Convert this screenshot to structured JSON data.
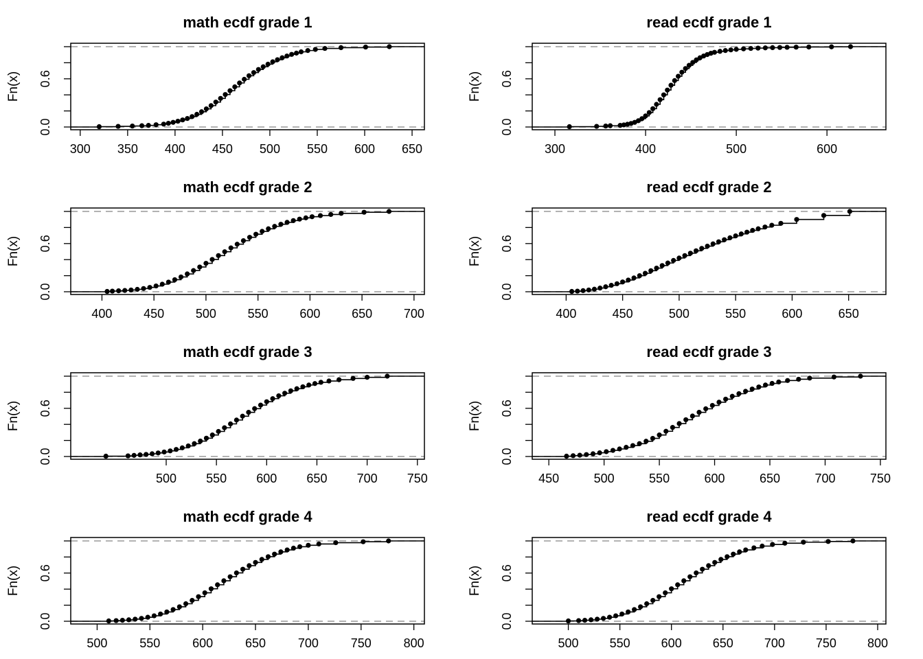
{
  "chart_data": [
    {
      "type": "line",
      "title": "math ecdf grade 1",
      "xlabel": "",
      "ylabel": "Fn(x)",
      "xticks": [
        300,
        350,
        400,
        450,
        500,
        550,
        600,
        650
      ],
      "yticks": [
        "0.0",
        "0.6"
      ],
      "xlim": [
        290,
        663
      ],
      "ylim": [
        0,
        1
      ],
      "x": [
        320,
        340,
        355,
        365,
        372,
        380,
        388,
        393,
        398,
        403,
        408,
        413,
        418,
        423,
        428,
        433,
        438,
        443,
        448,
        453,
        458,
        463,
        468,
        473,
        478,
        483,
        488,
        493,
        498,
        503,
        508,
        513,
        518,
        523,
        528,
        533,
        540,
        548,
        558,
        575,
        601,
        626
      ],
      "y": [
        0.004,
        0.008,
        0.012,
        0.016,
        0.02,
        0.028,
        0.036,
        0.046,
        0.058,
        0.072,
        0.088,
        0.106,
        0.13,
        0.158,
        0.19,
        0.226,
        0.266,
        0.31,
        0.356,
        0.404,
        0.452,
        0.5,
        0.548,
        0.594,
        0.638,
        0.678,
        0.716,
        0.75,
        0.782,
        0.812,
        0.838,
        0.862,
        0.884,
        0.904,
        0.92,
        0.936,
        0.952,
        0.966,
        0.978,
        0.988,
        0.995,
        1.0
      ]
    },
    {
      "type": "line",
      "title": "read ecdf grade 1",
      "xlabel": "",
      "ylabel": "Fn(x)",
      "xticks": [
        300,
        400,
        500,
        600
      ],
      "yticks": [
        "0.0",
        "0.6"
      ],
      "xlim": [
        275,
        665
      ],
      "ylim": [
        0,
        1
      ],
      "x": [
        316,
        346,
        356,
        361,
        372,
        376,
        380,
        384,
        388,
        392,
        396,
        400,
        404,
        408,
        412,
        416,
        420,
        424,
        428,
        432,
        436,
        440,
        444,
        448,
        452,
        456,
        460,
        464,
        468,
        472,
        476,
        482,
        488,
        494,
        500,
        508,
        516,
        524,
        532,
        540,
        548,
        556,
        566,
        580,
        605,
        626
      ],
      "y": [
        0.004,
        0.008,
        0.012,
        0.016,
        0.02,
        0.026,
        0.034,
        0.044,
        0.058,
        0.078,
        0.104,
        0.138,
        0.18,
        0.228,
        0.282,
        0.34,
        0.4,
        0.46,
        0.52,
        0.578,
        0.632,
        0.682,
        0.728,
        0.768,
        0.804,
        0.836,
        0.862,
        0.884,
        0.902,
        0.918,
        0.93,
        0.942,
        0.952,
        0.96,
        0.967,
        0.973,
        0.978,
        0.982,
        0.985,
        0.988,
        0.99,
        0.992,
        0.994,
        0.996,
        0.998,
        1.0
      ]
    },
    {
      "type": "line",
      "title": "math ecdf grade 2",
      "xlabel": "",
      "ylabel": "Fn(x)",
      "xticks": [
        400,
        450,
        500,
        550,
        600,
        650,
        700
      ],
      "yticks": [
        "0.0",
        "0.6"
      ],
      "xlim": [
        370,
        710
      ],
      "ylim": [
        0,
        1
      ],
      "x": [
        405,
        410,
        416,
        422,
        428,
        434,
        440,
        446,
        452,
        458,
        464,
        470,
        476,
        482,
        488,
        494,
        500,
        506,
        512,
        518,
        524,
        530,
        536,
        542,
        548,
        554,
        560,
        566,
        572,
        578,
        584,
        590,
        596,
        602,
        610,
        620,
        630,
        652,
        676
      ],
      "y": [
        0.004,
        0.008,
        0.012,
        0.016,
        0.022,
        0.03,
        0.04,
        0.054,
        0.072,
        0.094,
        0.12,
        0.15,
        0.184,
        0.222,
        0.264,
        0.308,
        0.354,
        0.402,
        0.45,
        0.498,
        0.546,
        0.592,
        0.636,
        0.678,
        0.716,
        0.752,
        0.784,
        0.814,
        0.84,
        0.864,
        0.886,
        0.904,
        0.92,
        0.934,
        0.948,
        0.962,
        0.976,
        0.99,
        1.0
      ]
    },
    {
      "type": "line",
      "title": "read ecdf grade 2",
      "xlabel": "",
      "ylabel": "Fn(x)",
      "xticks": [
        400,
        450,
        500,
        550,
        600,
        650
      ],
      "yticks": [
        "0.0",
        "0.6"
      ],
      "xlim": [
        370,
        683
      ],
      "ylim": [
        0,
        1
      ],
      "x": [
        405,
        410,
        415,
        420,
        425,
        430,
        435,
        440,
        445,
        450,
        455,
        460,
        465,
        470,
        475,
        480,
        485,
        490,
        495,
        500,
        505,
        510,
        515,
        520,
        525,
        530,
        535,
        540,
        545,
        550,
        555,
        560,
        565,
        570,
        576,
        582,
        590,
        604,
        628,
        651
      ],
      "y": [
        0.004,
        0.008,
        0.014,
        0.022,
        0.032,
        0.046,
        0.062,
        0.08,
        0.1,
        0.122,
        0.146,
        0.172,
        0.2,
        0.23,
        0.262,
        0.294,
        0.326,
        0.358,
        0.39,
        0.42,
        0.45,
        0.48,
        0.51,
        0.54,
        0.568,
        0.596,
        0.622,
        0.648,
        0.672,
        0.696,
        0.72,
        0.742,
        0.764,
        0.784,
        0.806,
        0.828,
        0.852,
        0.9,
        0.95,
        1.0
      ]
    },
    {
      "type": "line",
      "title": "math ecdf grade 3",
      "xlabel": "",
      "ylabel": "Fn(x)",
      "xticks": [
        500,
        550,
        600,
        650,
        700,
        750
      ],
      "yticks": [
        "0.0",
        "0.6"
      ],
      "xlim": [
        405,
        757
      ],
      "ylim": [
        0,
        1
      ],
      "x": [
        440,
        462,
        468,
        474,
        480,
        486,
        492,
        498,
        504,
        510,
        516,
        522,
        528,
        534,
        540,
        546,
        552,
        558,
        564,
        570,
        576,
        582,
        588,
        594,
        600,
        606,
        612,
        618,
        624,
        630,
        636,
        642,
        648,
        654,
        662,
        672,
        686,
        700,
        720
      ],
      "y": [
        0.004,
        0.008,
        0.014,
        0.02,
        0.026,
        0.034,
        0.044,
        0.056,
        0.07,
        0.088,
        0.108,
        0.132,
        0.16,
        0.192,
        0.228,
        0.268,
        0.312,
        0.358,
        0.406,
        0.454,
        0.502,
        0.55,
        0.596,
        0.64,
        0.682,
        0.72,
        0.756,
        0.788,
        0.818,
        0.844,
        0.868,
        0.89,
        0.908,
        0.924,
        0.94,
        0.956,
        0.972,
        0.986,
        1.0
      ]
    },
    {
      "type": "line",
      "title": "read ecdf grade 3",
      "xlabel": "",
      "ylabel": "Fn(x)",
      "xticks": [
        450,
        500,
        550,
        600,
        650,
        700,
        750
      ],
      "yticks": [
        "0.0",
        "0.6"
      ],
      "xlim": [
        435,
        755
      ],
      "ylim": [
        0,
        1
      ],
      "x": [
        466,
        472,
        478,
        484,
        490,
        496,
        502,
        508,
        514,
        520,
        526,
        532,
        538,
        544,
        550,
        556,
        562,
        568,
        574,
        580,
        586,
        592,
        598,
        604,
        610,
        616,
        622,
        628,
        634,
        640,
        646,
        652,
        658,
        666,
        676,
        686,
        708,
        732
      ],
      "y": [
        0.004,
        0.01,
        0.016,
        0.024,
        0.034,
        0.046,
        0.06,
        0.076,
        0.094,
        0.114,
        0.136,
        0.16,
        0.19,
        0.226,
        0.268,
        0.314,
        0.362,
        0.41,
        0.458,
        0.504,
        0.55,
        0.594,
        0.636,
        0.676,
        0.714,
        0.75,
        0.782,
        0.812,
        0.84,
        0.866,
        0.89,
        0.91,
        0.928,
        0.946,
        0.962,
        0.976,
        0.99,
        1.0
      ]
    },
    {
      "type": "line",
      "title": "math ecdf grade 4",
      "xlabel": "",
      "ylabel": "Fn(x)",
      "xticks": [
        500,
        550,
        600,
        650,
        700,
        750,
        800
      ],
      "yticks": [
        "0.0",
        "0.6"
      ],
      "xlim": [
        475,
        810
      ],
      "ylim": [
        0,
        1
      ],
      "x": [
        511,
        518,
        524,
        530,
        536,
        542,
        548,
        554,
        560,
        566,
        572,
        578,
        584,
        590,
        596,
        602,
        608,
        614,
        620,
        626,
        632,
        638,
        644,
        650,
        656,
        662,
        668,
        674,
        680,
        686,
        692,
        700,
        710,
        726,
        752,
        776
      ],
      "y": [
        0.004,
        0.008,
        0.012,
        0.018,
        0.026,
        0.036,
        0.05,
        0.068,
        0.09,
        0.116,
        0.146,
        0.18,
        0.218,
        0.26,
        0.306,
        0.354,
        0.404,
        0.454,
        0.504,
        0.554,
        0.602,
        0.648,
        0.692,
        0.732,
        0.77,
        0.804,
        0.836,
        0.864,
        0.888,
        0.91,
        0.928,
        0.946,
        0.962,
        0.978,
        0.99,
        1.0
      ]
    },
    {
      "type": "line",
      "title": "read ecdf grade 4",
      "xlabel": "",
      "ylabel": "Fn(x)",
      "xticks": [
        500,
        550,
        600,
        650,
        700,
        750,
        800
      ],
      "yticks": [
        "0.0",
        "0.6"
      ],
      "xlim": [
        465,
        808
      ],
      "ylim": [
        0,
        1
      ],
      "x": [
        500,
        510,
        516,
        522,
        528,
        534,
        540,
        546,
        552,
        558,
        564,
        570,
        576,
        582,
        588,
        594,
        600,
        606,
        612,
        618,
        624,
        630,
        636,
        642,
        648,
        654,
        660,
        666,
        672,
        680,
        688,
        698,
        710,
        728,
        752,
        776
      ],
      "y": [
        0.004,
        0.008,
        0.012,
        0.018,
        0.026,
        0.036,
        0.05,
        0.068,
        0.09,
        0.116,
        0.146,
        0.18,
        0.218,
        0.26,
        0.306,
        0.354,
        0.404,
        0.454,
        0.504,
        0.554,
        0.602,
        0.648,
        0.692,
        0.732,
        0.77,
        0.804,
        0.836,
        0.864,
        0.888,
        0.914,
        0.936,
        0.956,
        0.972,
        0.984,
        0.993,
        1.0
      ]
    }
  ]
}
